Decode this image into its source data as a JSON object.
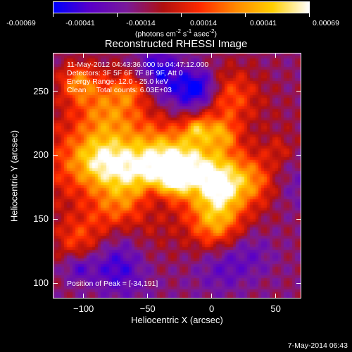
{
  "colorbar": {
    "tick_labels": [
      "-0.00069",
      "-0.00041",
      "-0.00014",
      "0.00014",
      "0.00041",
      "0.00069"
    ],
    "units_text": "(photons cm",
    "units_sup1": "-2",
    "units_mid": " s",
    "units_sup2": "-1",
    "units_end": " asec",
    "units_sup3": "-2",
    "units_close": ")"
  },
  "chart_data": {
    "type": "heatmap",
    "title": "Reconstructed RHESSI Image",
    "xlabel": "Heliocentric X (arcsec)",
    "ylabel": "Heliocentric Y (arcsec)",
    "xlim": [
      -124,
      70
    ],
    "ylim": [
      88,
      280
    ],
    "x_ticks": [
      -100,
      -50,
      0,
      50
    ],
    "y_ticks": [
      100,
      150,
      200,
      250
    ],
    "x_tick_labels": [
      "−100",
      "−50",
      "0",
      "50"
    ],
    "y_tick_labels": [
      "100",
      "150",
      "200",
      "250"
    ],
    "value_range": [
      -0.00069,
      0.00069
    ],
    "colormap": [
      "#0000ff",
      "#5a00c8",
      "#7a1a9a",
      "#b01010",
      "#ff2a00",
      "#ff8a00",
      "#ffd000",
      "#ffffff"
    ],
    "peak": [
      -34,
      191
    ],
    "annotations": [
      "11-May-2012 04:43:36.000 to 04:47:12.000",
      "Detectors: 3F 5F 6F 7F 8F 9F, Att 0",
      "Energy Range: 12.0 - 25.0 keV",
      "Clean     Total counts: 6.03E+03",
      "Position of Peak = [-34,191]"
    ]
  },
  "footer": {
    "timestamp": "7-May-2014 06:43"
  }
}
